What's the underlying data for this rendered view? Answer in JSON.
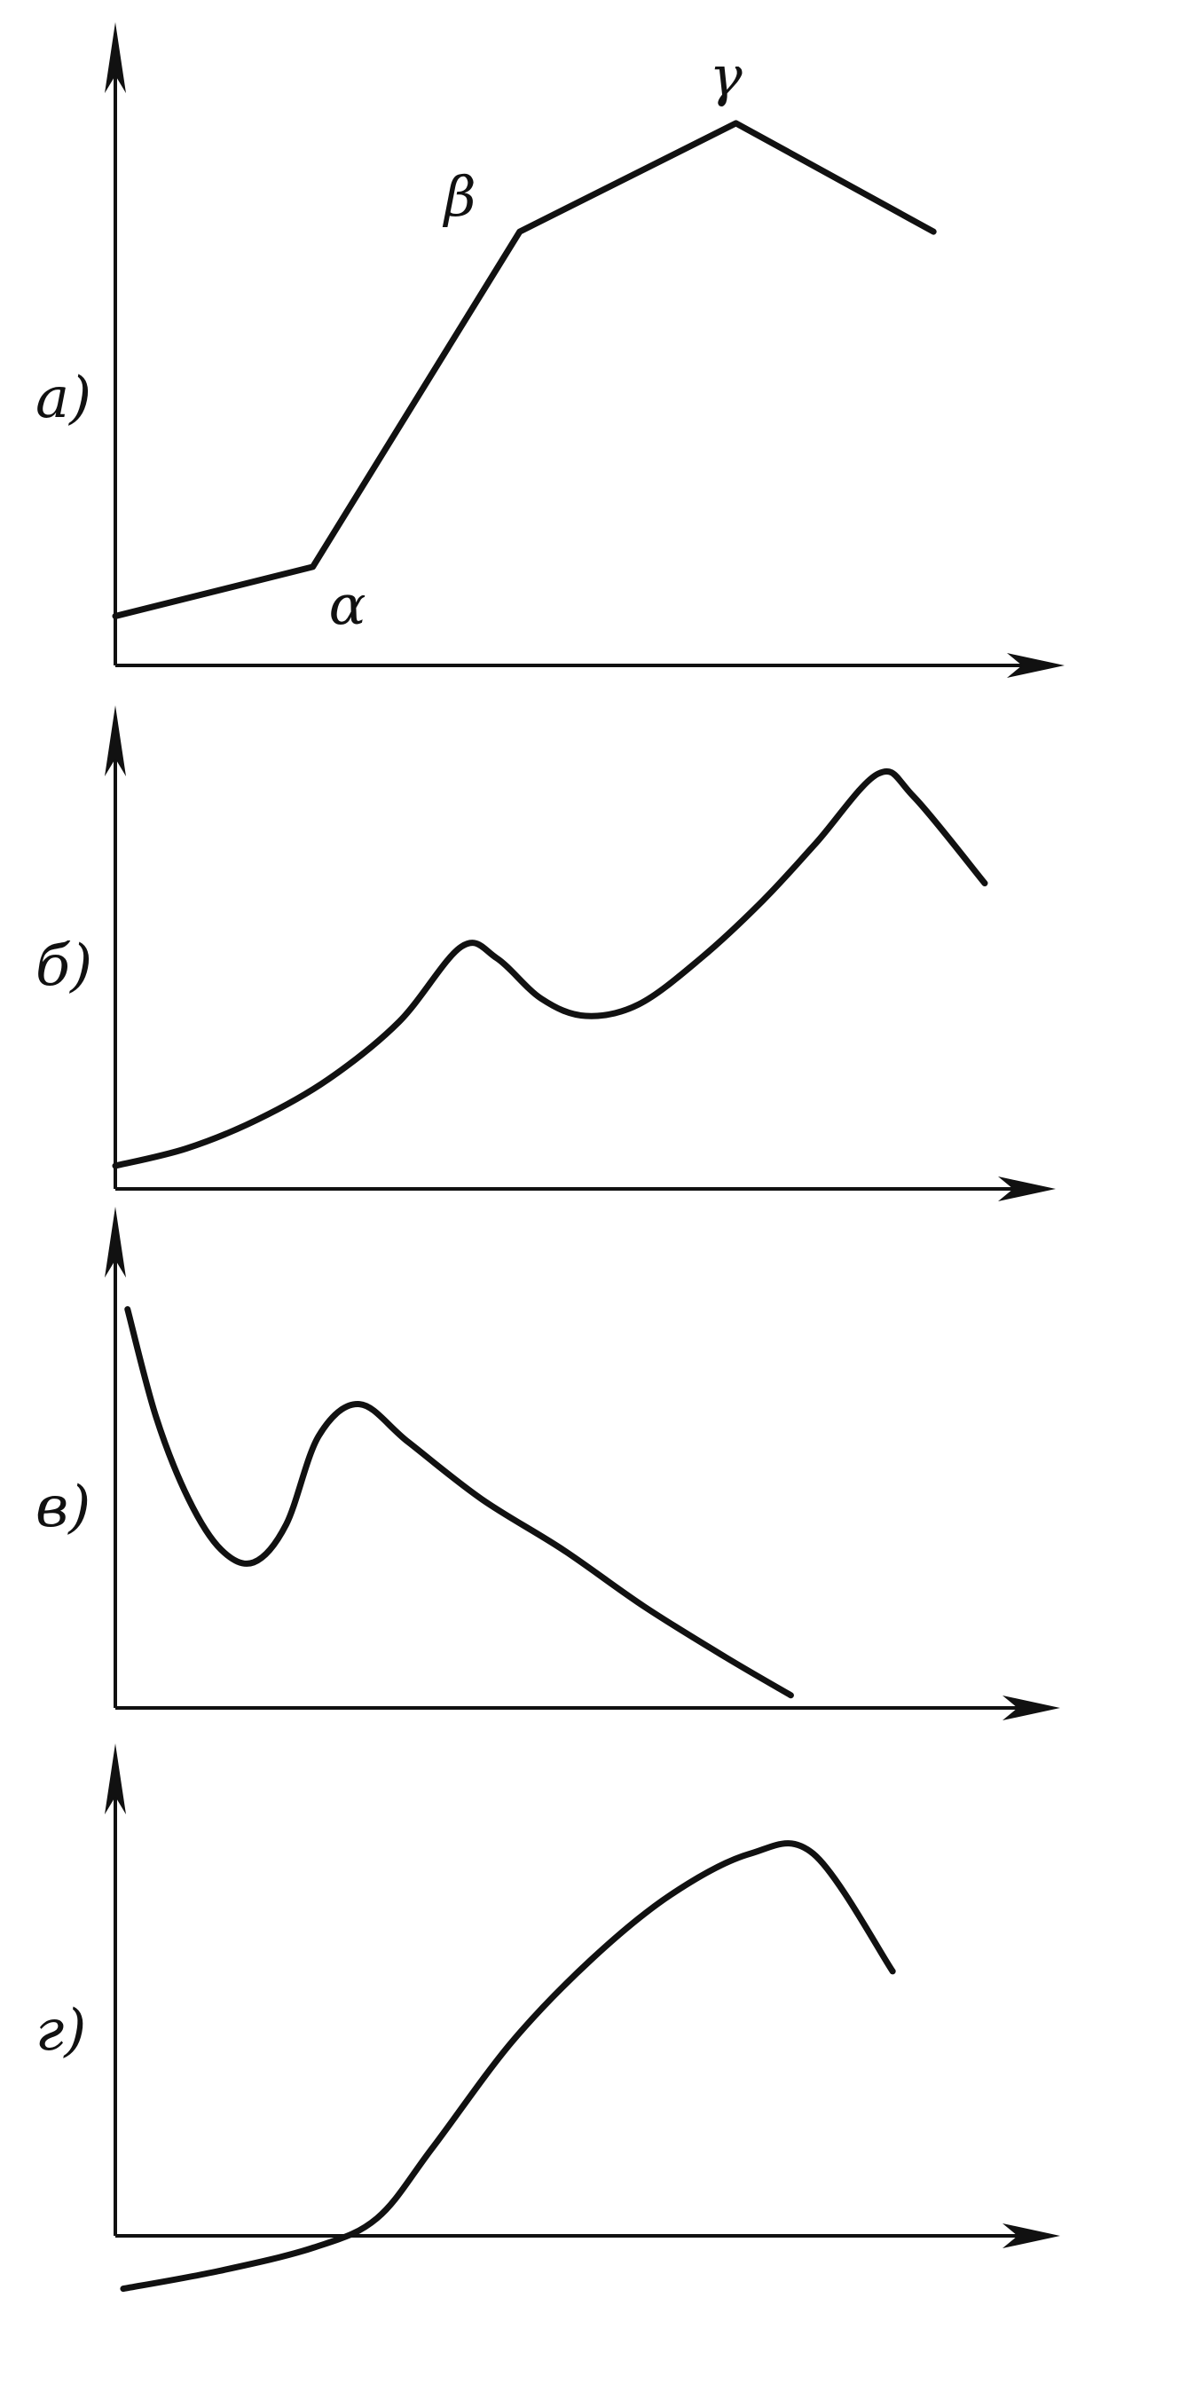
{
  "chart_data": [
    {
      "type": "line",
      "panel_label": "а)",
      "title": "",
      "xlabel": "",
      "ylabel": "",
      "x": [
        0,
        2.1,
        4.3,
        6.6,
        8.7
      ],
      "y": [
        0.5,
        1.0,
        4.4,
        5.5,
        4.4
      ],
      "xlim": [
        0,
        10
      ],
      "ylim": [
        0,
        6.3
      ],
      "point_labels": [
        {
          "index": 1,
          "text": "α",
          "position": "below-right"
        },
        {
          "index": 2,
          "text": "β",
          "position": "above-left"
        },
        {
          "index": 3,
          "text": "γ",
          "position": "above"
        }
      ],
      "grid": false
    },
    {
      "type": "line",
      "panel_label": "б)",
      "title": "",
      "xlabel": "",
      "ylabel": "",
      "x": [
        0,
        0.8,
        1.6,
        2.4,
        3.2,
        3.9,
        4.3,
        4.8,
        5.3,
        5.9,
        6.6,
        7.3,
        7.9,
        8.6,
        9.0,
        9.8
      ],
      "y": [
        0.4,
        0.7,
        1.2,
        1.9,
        2.9,
        4.2,
        4.0,
        3.3,
        3.0,
        3.2,
        4.0,
        5.0,
        6.0,
        7.2,
        6.8,
        5.3
      ],
      "xlim": [
        0,
        10.5
      ],
      "ylim": [
        0,
        8
      ],
      "grid": false
    },
    {
      "type": "line",
      "panel_label": "в)",
      "title": "",
      "xlabel": "",
      "ylabel": "",
      "x": [
        0.15,
        0.5,
        0.9,
        1.3,
        1.7,
        2.1,
        2.5,
        3.0,
        3.6,
        4.5,
        5.5,
        6.5,
        7.5,
        8.3
      ],
      "y": [
        6.3,
        4.6,
        3.3,
        2.5,
        2.3,
        2.9,
        4.3,
        4.8,
        4.2,
        3.3,
        2.5,
        1.6,
        0.8,
        0.2
      ],
      "xlim": [
        0,
        11.5
      ],
      "ylim": [
        0,
        7.5
      ],
      "grid": false
    },
    {
      "type": "line",
      "panel_label": "г)",
      "title": "",
      "xlabel": "",
      "ylabel": "",
      "x": [
        0.1,
        1.3,
        2.5,
        3.3,
        4.0,
        5.0,
        6.0,
        7.0,
        8.0,
        8.8,
        9.8
      ],
      "y": [
        -0.9,
        -0.6,
        -0.2,
        0.3,
        1.5,
        3.3,
        4.7,
        5.8,
        6.5,
        6.5,
        4.5
      ],
      "xlim": [
        0,
        11.8
      ],
      "ylim": [
        -1.2,
        8
      ],
      "grid": false
    }
  ]
}
